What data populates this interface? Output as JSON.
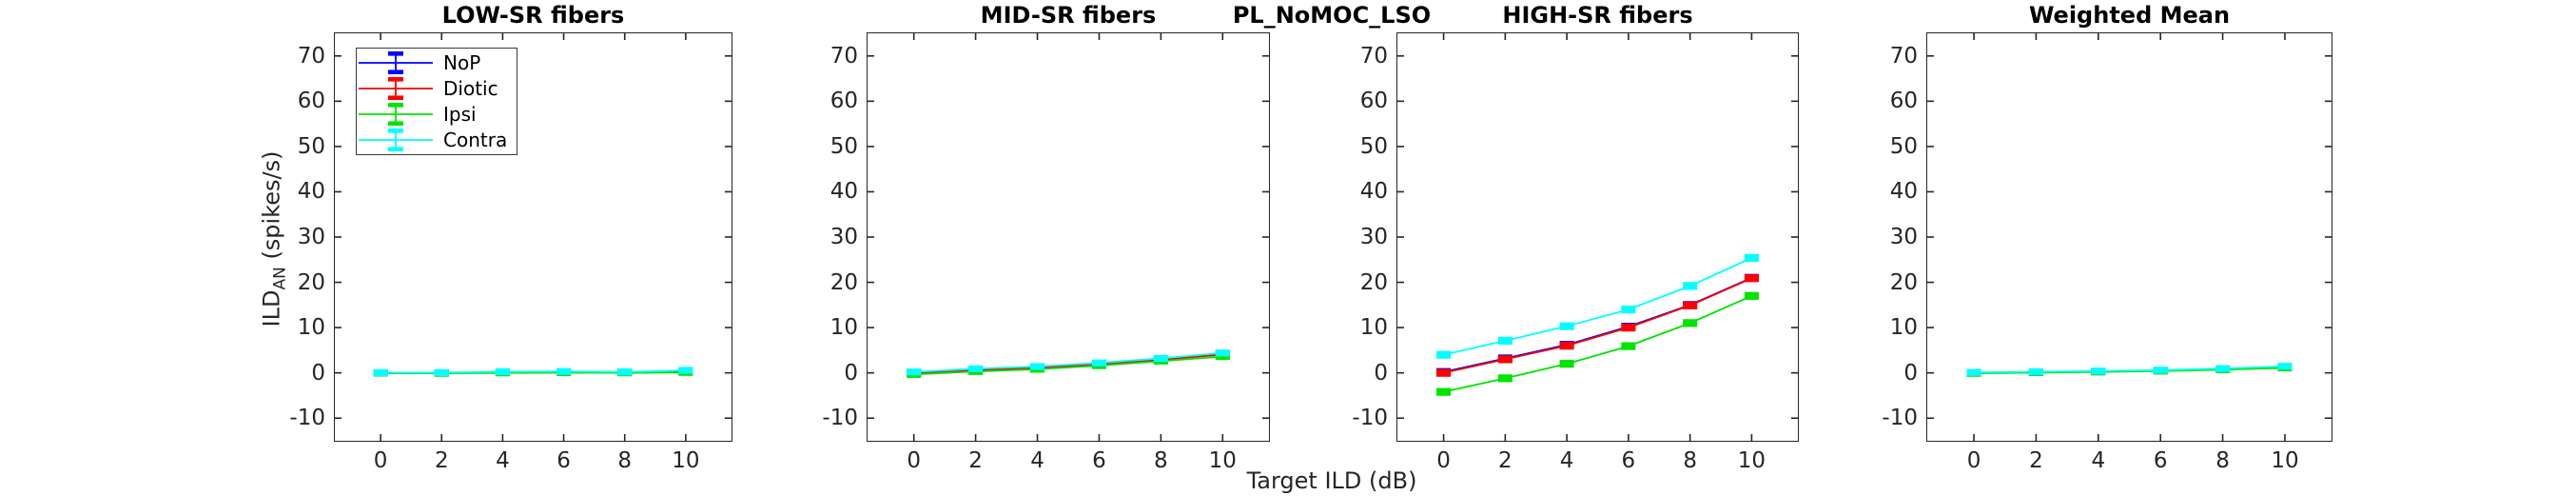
{
  "figure": {
    "suptitle": "PL_NoMOC_LSO",
    "xlabel": "Target ILD (dB)",
    "ylabel": {
      "base": "ILD",
      "sub": "AN",
      "unit": " (spikes/s)"
    }
  },
  "legend": {
    "entries": [
      {
        "label": "NoP",
        "color": "#0000ff"
      },
      {
        "label": "Diotic",
        "color": "#ff0000"
      },
      {
        "label": "Ipsi",
        "color": "#00e400"
      },
      {
        "label": "Contra",
        "color": "#00ffff"
      }
    ]
  },
  "chart_data": [
    {
      "type": "line",
      "title": "LOW-SR fibers",
      "x": [
        0,
        2,
        4,
        6,
        8,
        10
      ],
      "xlim": [
        -1.5,
        11.5
      ],
      "ylim": [
        -15,
        75
      ],
      "xticks": [
        0,
        2,
        4,
        6,
        8,
        10
      ],
      "yticks": [
        -10,
        0,
        10,
        20,
        30,
        40,
        50,
        60,
        70
      ],
      "series": [
        {
          "name": "NoP",
          "color": "#0000ff",
          "err": 0.3,
          "values": [
            0,
            0,
            0.15,
            0.15,
            0.15,
            0.3
          ]
        },
        {
          "name": "Diotic",
          "color": "#ff0000",
          "err": 0.3,
          "values": [
            0,
            0,
            0.1,
            0.1,
            0.1,
            0.25
          ]
        },
        {
          "name": "Ipsi",
          "color": "#00e400",
          "err": 0.3,
          "values": [
            -0.05,
            -0.1,
            0,
            0.05,
            0,
            0.1
          ]
        },
        {
          "name": "Contra",
          "color": "#00ffff",
          "err": 0.3,
          "values": [
            0.05,
            0.05,
            0.25,
            0.3,
            0.2,
            0.55
          ]
        }
      ]
    },
    {
      "type": "line",
      "title": "MID-SR fibers",
      "x": [
        0,
        2,
        4,
        6,
        8,
        10
      ],
      "xlim": [
        -1.5,
        11.5
      ],
      "ylim": [
        -15,
        75
      ],
      "xticks": [
        0,
        2,
        4,
        6,
        8,
        10
      ],
      "yticks": [
        -10,
        0,
        10,
        20,
        30,
        40,
        50,
        60,
        70
      ],
      "series": [
        {
          "name": "NoP",
          "color": "#0000ff",
          "err": 0.3,
          "values": [
            0.05,
            0.65,
            1.2,
            2.0,
            3.0,
            4.15
          ]
        },
        {
          "name": "Diotic",
          "color": "#ff0000",
          "err": 0.3,
          "values": [
            0,
            0.6,
            1.1,
            1.9,
            2.9,
            4.05
          ]
        },
        {
          "name": "Ipsi",
          "color": "#00e400",
          "err": 0.3,
          "values": [
            -0.35,
            0.3,
            0.8,
            1.6,
            2.6,
            3.6
          ]
        },
        {
          "name": "Contra",
          "color": "#00ffff",
          "err": 0.3,
          "values": [
            0.2,
            0.9,
            1.4,
            2.2,
            3.2,
            4.4
          ]
        }
      ]
    },
    {
      "type": "line",
      "title": "HIGH-SR fibers",
      "x": [
        0,
        2,
        4,
        6,
        8,
        10
      ],
      "xlim": [
        -1.5,
        11.5
      ],
      "ylim": [
        -15,
        75
      ],
      "xticks": [
        0,
        2,
        4,
        6,
        8,
        10
      ],
      "yticks": [
        -10,
        0,
        10,
        20,
        30,
        40,
        50,
        60,
        70
      ],
      "series": [
        {
          "name": "NoP",
          "color": "#0000ff",
          "err": 0.4,
          "values": [
            0.2,
            3.2,
            6.2,
            10.2,
            15.0,
            21.0
          ]
        },
        {
          "name": "Diotic",
          "color": "#ff0000",
          "err": 0.4,
          "values": [
            0,
            3.0,
            6.0,
            10.0,
            14.9,
            20.9
          ]
        },
        {
          "name": "Ipsi",
          "color": "#00e400",
          "err": 0.4,
          "values": [
            -4.2,
            -1.2,
            2.0,
            5.9,
            11.0,
            17.0
          ]
        },
        {
          "name": "Contra",
          "color": "#00ffff",
          "err": 0.4,
          "values": [
            4.0,
            7.1,
            10.3,
            14.0,
            19.2,
            25.4
          ]
        }
      ]
    },
    {
      "type": "line",
      "title": "Weighted Mean",
      "x": [
        0,
        2,
        4,
        6,
        8,
        10
      ],
      "xlim": [
        -1.5,
        11.5
      ],
      "ylim": [
        -15,
        75
      ],
      "xticks": [
        0,
        2,
        4,
        6,
        8,
        10
      ],
      "yticks": [
        -10,
        0,
        10,
        20,
        30,
        40,
        50,
        60,
        70
      ],
      "series": [
        {
          "name": "NoP",
          "color": "#0000ff",
          "err": 0.3,
          "values": [
            0,
            0.15,
            0.3,
            0.5,
            0.85,
            1.3
          ]
        },
        {
          "name": "Diotic",
          "color": "#ff0000",
          "err": 0.3,
          "values": [
            0,
            0.1,
            0.25,
            0.45,
            0.8,
            1.25
          ]
        },
        {
          "name": "Ipsi",
          "color": "#00e400",
          "err": 0.3,
          "values": [
            -0.1,
            0.05,
            0.2,
            0.4,
            0.7,
            1.1
          ]
        },
        {
          "name": "Contra",
          "color": "#00ffff",
          "err": 0.3,
          "values": [
            0.1,
            0.25,
            0.4,
            0.6,
            0.95,
            1.45
          ]
        }
      ]
    }
  ]
}
